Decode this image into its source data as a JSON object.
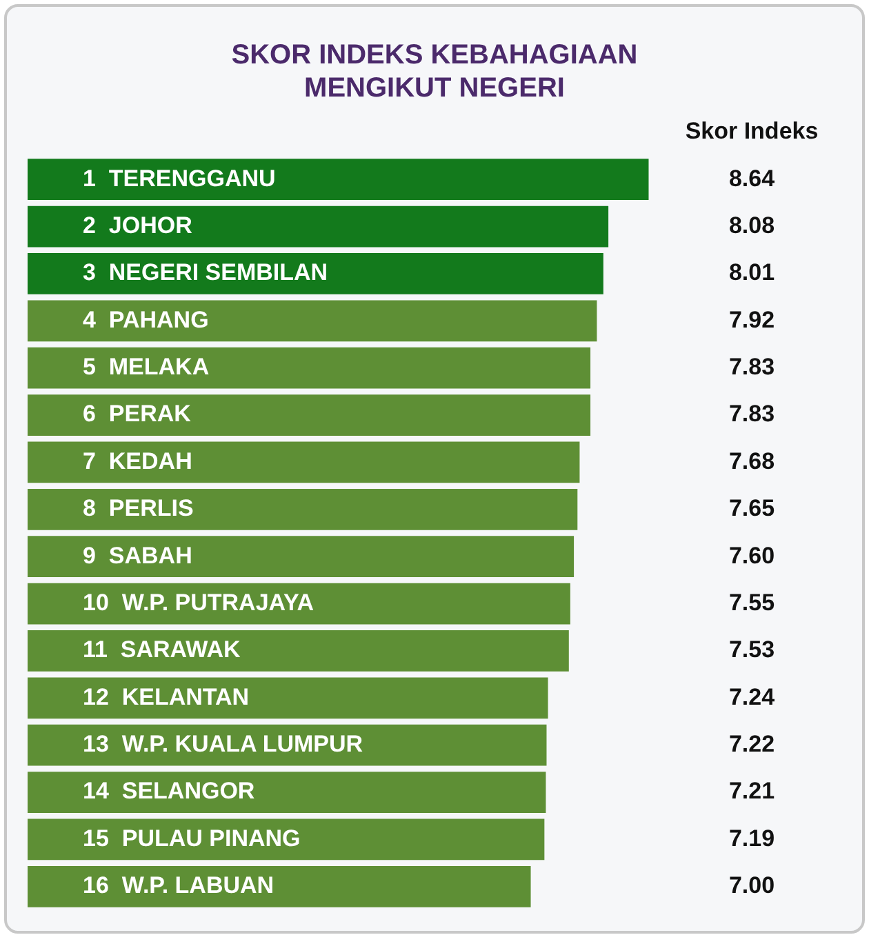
{
  "chart_data": {
    "type": "bar",
    "orientation": "horizontal",
    "title": "SKOR INDEKS KEBAHAGIAAN MENGIKUT NEGERI",
    "annotations": [
      "Skor Indeks"
    ],
    "categories": [
      "1  TERENGGANU",
      "2  JOHOR",
      "3  NEGERI SEMBILAN",
      "4  PAHANG",
      "5  MELAKA",
      "6  PERAK",
      "7  KEDAH",
      "8  PERLIS",
      "9  SABAH",
      "10  W.P. PUTRAJAYA",
      "11  SARAWAK",
      "12  KELANTAN",
      "13  W.P. KUALA LUMPUR",
      "14  SELANGOR",
      "15  PULAU PINANG",
      "16  W.P. LABUAN"
    ],
    "values": [
      8.64,
      8.08,
      8.01,
      7.92,
      7.83,
      7.83,
      7.68,
      7.65,
      7.6,
      7.55,
      7.53,
      7.24,
      7.22,
      7.21,
      7.19,
      7.0
    ],
    "value_labels": [
      "8.64",
      "8.08",
      "8.01",
      "7.92",
      "7.83",
      "7.83",
      "7.68",
      "7.65",
      "7.60",
      "7.55",
      "7.53",
      "7.24",
      "7.22",
      "7.21",
      "7.19",
      "7.00"
    ],
    "colors": [
      "#137a1c",
      "#137a1c",
      "#137a1c",
      "#5e8f35",
      "#5e8f35",
      "#5e8f35",
      "#5e8f35",
      "#5e8f35",
      "#5e8f35",
      "#5e8f35",
      "#5e8f35",
      "#5e8f35",
      "#5e8f35",
      "#5e8f35",
      "#5e8f35",
      "#5e8f35"
    ],
    "legend": false
  }
}
